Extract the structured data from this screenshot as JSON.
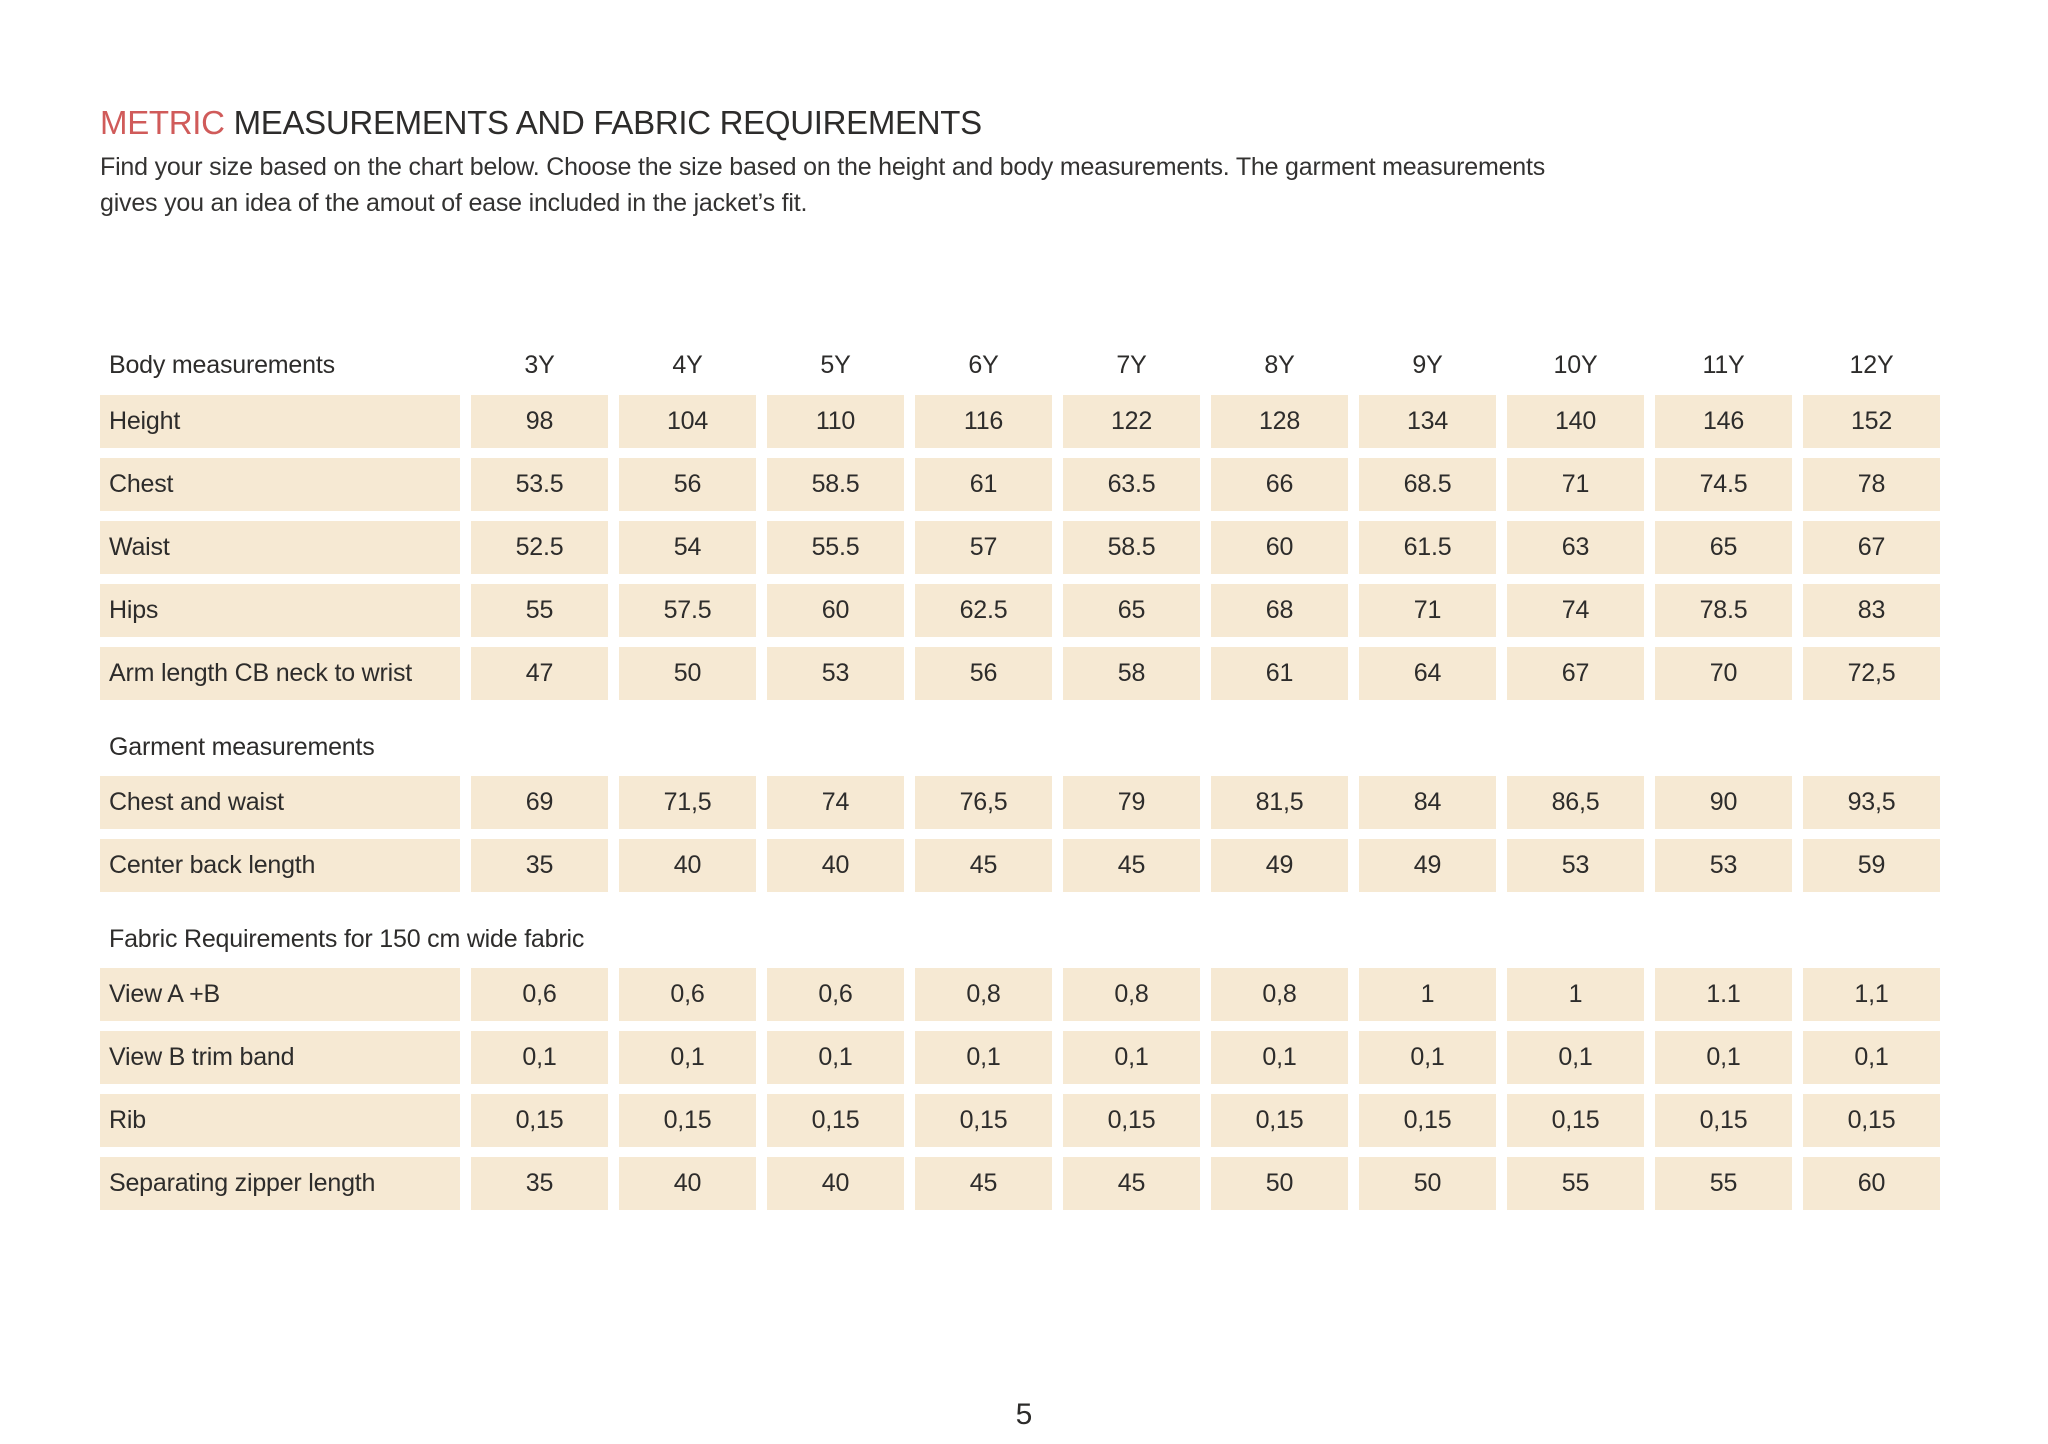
{
  "page": {
    "title_accent": "METRIC",
    "title_rest": " MEASUREMENTS AND FABRIC REQUIREMENTS",
    "subtitle_lines": [
      "Find your size based on the chart below. Choose the size based on the height and body measurements. The garment measurements",
      "gives you an idea of the amout of ease included in the jacket’s fit."
    ],
    "page_number": "5"
  },
  "colors": {
    "accent": "#d05b5a",
    "cell_background": "#f6e9d3",
    "text": "#2d2c2b"
  },
  "table": {
    "size_columns": [
      "3Y",
      "4Y",
      "5Y",
      "6Y",
      "7Y",
      "8Y",
      "9Y",
      "10Y",
      "11Y",
      "12Y"
    ],
    "rows": [
      {
        "type": "header",
        "label": "Body measurements",
        "values": [
          "3Y",
          "4Y",
          "5Y",
          "6Y",
          "7Y",
          "8Y",
          "9Y",
          "10Y",
          "11Y",
          "12Y"
        ]
      },
      {
        "type": "data",
        "label": "Height",
        "values": [
          "98",
          "104",
          "110",
          "116",
          "122",
          "128",
          "134",
          "140",
          "146",
          "152"
        ]
      },
      {
        "type": "data",
        "label": "Chest",
        "values": [
          "53.5",
          "56",
          "58.5",
          "61",
          "63.5",
          "66",
          "68.5",
          "71",
          "74.5",
          "78"
        ]
      },
      {
        "type": "data",
        "label": "Waist",
        "values": [
          "52.5",
          "54",
          "55.5",
          "57",
          "58.5",
          "60",
          "61.5",
          "63",
          "65",
          "67"
        ]
      },
      {
        "type": "data",
        "label": "Hips",
        "values": [
          "55",
          "57.5",
          "60",
          "62.5",
          "65",
          "68",
          "71",
          "74",
          "78.5",
          "83"
        ]
      },
      {
        "type": "data",
        "label": "Arm length CB neck to wrist",
        "values": [
          "47",
          "50",
          "53",
          "56",
          "58",
          "61",
          "64",
          "67",
          "70",
          "72,5"
        ]
      },
      {
        "type": "section",
        "label": "Garment measurements"
      },
      {
        "type": "data",
        "label": "Chest and waist",
        "values": [
          "69",
          "71,5",
          "74",
          "76,5",
          "79",
          "81,5",
          "84",
          "86,5",
          "90",
          "93,5"
        ]
      },
      {
        "type": "data",
        "label": "Center back length",
        "values": [
          "35",
          "40",
          "40",
          "45",
          "45",
          "49",
          "49",
          "53",
          "53",
          "59"
        ]
      },
      {
        "type": "section",
        "label": "Fabric Requirements for 150 cm wide fabric"
      },
      {
        "type": "data",
        "label": "View A +B",
        "values": [
          "0,6",
          "0,6",
          "0,6",
          "0,8",
          "0,8",
          "0,8",
          "1",
          "1",
          "1.1",
          "1,1"
        ]
      },
      {
        "type": "data",
        "label": "View B trim band",
        "values": [
          "0,1",
          "0,1",
          "0,1",
          "0,1",
          "0,1",
          "0,1",
          "0,1",
          "0,1",
          "0,1",
          "0,1"
        ]
      },
      {
        "type": "data",
        "label": "Rib",
        "values": [
          "0,15",
          "0,15",
          "0,15",
          "0,15",
          "0,15",
          "0,15",
          "0,15",
          "0,15",
          "0,15",
          "0,15"
        ]
      },
      {
        "type": "data",
        "label": "Separating zipper length",
        "values": [
          "35",
          "40",
          "40",
          "45",
          "45",
          "50",
          "50",
          "55",
          "55",
          "60"
        ]
      }
    ]
  }
}
